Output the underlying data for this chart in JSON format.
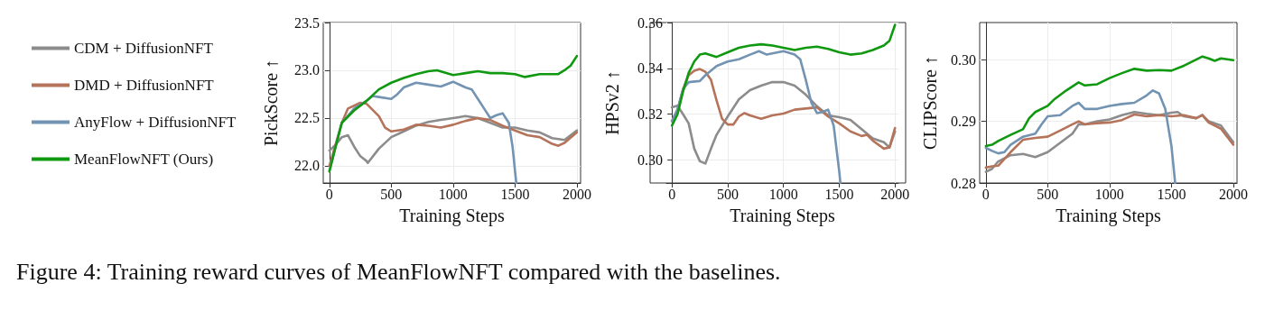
{
  "chart_data": [
    {
      "type": "line",
      "xlabel": "Training Steps",
      "ylabel": "PickScore ↑",
      "xlim": [
        -50,
        2030
      ],
      "xticks": [
        0,
        500,
        1000,
        1500,
        2000
      ],
      "ylim": [
        21.82,
        23.5
      ],
      "yticks": [
        {
          "value": 22,
          "label": "22.0"
        },
        22.5,
        {
          "value": 23,
          "label": "23.0"
        },
        23.5
      ],
      "grid": true,
      "legend": "left",
      "annotations": [
        "Figure 4: Training reward curves of MeanFlowNFT compared with the baselines."
      ],
      "series": [
        {
          "name": "CDM + DiffusionNFT",
          "color": "#8c8c8c",
          "x": [
            0,
            50,
            100,
            150,
            200,
            250,
            300,
            310,
            400,
            500,
            600,
            700,
            800,
            900,
            1000,
            1100,
            1200,
            1300,
            1400,
            1500,
            1600,
            1700,
            1800,
            1900,
            2000
          ],
          "values": [
            22.16,
            22.22,
            22.3,
            22.32,
            22.2,
            22.1,
            22.05,
            22.03,
            22.18,
            22.3,
            22.36,
            22.42,
            22.46,
            22.48,
            22.5,
            22.52,
            22.5,
            22.45,
            22.4,
            22.4,
            22.37,
            22.35,
            22.29,
            22.27,
            22.37
          ]
        },
        {
          "name": "DMD + DiffusionNFT",
          "color": "#b5735a",
          "x": [
            0,
            100,
            150,
            250,
            300,
            400,
            450,
            500,
            600,
            700,
            800,
            900,
            1000,
            1100,
            1200,
            1300,
            1400,
            1500,
            1600,
            1700,
            1800,
            1850,
            1900,
            2000
          ],
          "values": [
            22.0,
            22.45,
            22.6,
            22.66,
            22.65,
            22.52,
            22.4,
            22.36,
            22.38,
            22.43,
            22.42,
            22.4,
            22.43,
            22.47,
            22.5,
            22.48,
            22.42,
            22.37,
            22.32,
            22.3,
            22.23,
            22.21,
            22.24,
            22.35
          ]
        },
        {
          "name": "AnyFlow + DiffusionNFT",
          "color": "#7393b3",
          "x": [
            0,
            50,
            100,
            200,
            300,
            350,
            400,
            500,
            550,
            600,
            700,
            800,
            900,
            1000,
            1100,
            1150,
            1200,
            1250,
            1300,
            1350,
            1400,
            1450,
            1480,
            1510
          ],
          "values": [
            21.95,
            22.2,
            22.45,
            22.6,
            22.68,
            22.73,
            22.72,
            22.7,
            22.75,
            22.82,
            22.87,
            22.85,
            22.83,
            22.88,
            22.82,
            22.8,
            22.7,
            22.6,
            22.5,
            22.53,
            22.55,
            22.45,
            22.2,
            21.82
          ]
        },
        {
          "name": "MeanFlowNFT (Ours)",
          "color": "#109910",
          "x": [
            0,
            50,
            100,
            200,
            300,
            400,
            500,
            600,
            700,
            800,
            870,
            1000,
            1100,
            1200,
            1300,
            1400,
            1500,
            1580,
            1700,
            1800,
            1850,
            1900,
            1950,
            2000
          ],
          "values": [
            21.94,
            22.2,
            22.45,
            22.58,
            22.68,
            22.8,
            22.87,
            22.92,
            22.96,
            22.99,
            23.0,
            22.95,
            22.97,
            22.99,
            22.97,
            22.97,
            22.96,
            22.93,
            22.96,
            22.96,
            22.96,
            23.0,
            23.05,
            23.15
          ]
        }
      ]
    },
    {
      "type": "line",
      "xlabel": "Training Steps",
      "ylabel": "HPSv2 ↑",
      "xlim": [
        -50,
        2030
      ],
      "xticks": [
        0,
        500,
        1000,
        1500,
        2000
      ],
      "ylim": [
        0.29,
        0.36
      ],
      "yticks": [
        {
          "value": 0.3,
          "label": "0.30"
        },
        0.32,
        0.34,
        0.36
      ],
      "grid": true,
      "series": [
        {
          "color": "#8c8c8c",
          "x": [
            0,
            50,
            100,
            150,
            200,
            250,
            300,
            350,
            400,
            500,
            600,
            700,
            800,
            900,
            1000,
            1100,
            1200,
            1300,
            1400,
            1500,
            1600,
            1700,
            1800,
            1900,
            1950,
            2000
          ],
          "values": [
            0.323,
            0.3237,
            0.32,
            0.316,
            0.305,
            0.2995,
            0.2985,
            0.305,
            0.311,
            0.319,
            0.3265,
            0.3305,
            0.3325,
            0.334,
            0.334,
            0.3325,
            0.3285,
            0.3235,
            0.3195,
            0.3187,
            0.3175,
            0.3135,
            0.3095,
            0.3078,
            0.3055,
            0.3125
          ]
        },
        {
          "color": "#b5735a",
          "x": [
            0,
            50,
            100,
            150,
            200,
            250,
            300,
            350,
            400,
            450,
            500,
            550,
            600,
            650,
            700,
            800,
            900,
            1000,
            1100,
            1200,
            1300,
            1400,
            1500,
            1600,
            1700,
            1750,
            1800,
            1900,
            1950,
            2000
          ],
          "values": [
            0.317,
            0.322,
            0.331,
            0.337,
            0.339,
            0.3397,
            0.3385,
            0.335,
            0.326,
            0.318,
            0.3155,
            0.3155,
            0.319,
            0.3205,
            0.3195,
            0.318,
            0.3195,
            0.3203,
            0.322,
            0.3225,
            0.323,
            0.319,
            0.316,
            0.3125,
            0.3105,
            0.311,
            0.3085,
            0.305,
            0.3055,
            0.314
          ]
        },
        {
          "color": "#7393b3",
          "x": [
            0,
            50,
            100,
            150,
            250,
            300,
            400,
            500,
            600,
            700,
            780,
            850,
            1000,
            1100,
            1150,
            1200,
            1250,
            1300,
            1350,
            1400,
            1450,
            1500,
            1510
          ],
          "values": [
            0.317,
            0.322,
            0.331,
            0.334,
            0.3345,
            0.337,
            0.341,
            0.343,
            0.344,
            0.346,
            0.3475,
            0.346,
            0.3475,
            0.346,
            0.344,
            0.335,
            0.325,
            0.3205,
            0.321,
            0.322,
            0.315,
            0.295,
            0.29
          ]
        },
        {
          "color": "#109910",
          "x": [
            0,
            50,
            100,
            150,
            200,
            250,
            300,
            400,
            500,
            600,
            700,
            800,
            900,
            1000,
            1100,
            1200,
            1300,
            1400,
            1500,
            1600,
            1700,
            1800,
            1900,
            1950,
            2000
          ],
          "values": [
            0.315,
            0.32,
            0.33,
            0.338,
            0.343,
            0.346,
            0.3465,
            0.345,
            0.347,
            0.349,
            0.35,
            0.3505,
            0.35,
            0.349,
            0.348,
            0.349,
            0.3495,
            0.3485,
            0.347,
            0.346,
            0.3465,
            0.348,
            0.35,
            0.352,
            0.359
          ]
        }
      ]
    },
    {
      "type": "line",
      "xlabel": "Training Steps",
      "ylabel": "CLIPScore ↑",
      "xlim": [
        -50,
        2030
      ],
      "xticks": [
        0,
        500,
        1000,
        1500,
        2000
      ],
      "ylim": [
        0.28,
        0.306
      ],
      "yticks": [
        0.28,
        0.29,
        {
          "value": 0.3,
          "label": "0.30"
        }
      ],
      "grid": true,
      "series": [
        {
          "color": "#8c8c8c",
          "x": [
            0,
            50,
            100,
            200,
            300,
            400,
            450,
            500,
            600,
            700,
            750,
            800,
            900,
            1000,
            1100,
            1200,
            1300,
            1400,
            1500,
            1550,
            1600,
            1700,
            1750,
            1800,
            1900,
            2000
          ],
          "values": [
            0.2818,
            0.2823,
            0.2835,
            0.2845,
            0.2847,
            0.2842,
            0.2846,
            0.285,
            0.2865,
            0.288,
            0.2895,
            0.2895,
            0.29,
            0.2903,
            0.291,
            0.2915,
            0.2912,
            0.291,
            0.2914,
            0.2915,
            0.2908,
            0.2905,
            0.291,
            0.29,
            0.2893,
            0.2866
          ]
        },
        {
          "color": "#b5735a",
          "x": [
            0,
            50,
            100,
            200,
            300,
            400,
            500,
            600,
            700,
            750,
            800,
            900,
            1000,
            1100,
            1200,
            1300,
            1400,
            1500,
            1600,
            1700,
            1750,
            1800,
            1900,
            2000
          ],
          "values": [
            0.2825,
            0.2827,
            0.2828,
            0.285,
            0.287,
            0.2873,
            0.2875,
            0.2885,
            0.2895,
            0.29,
            0.2895,
            0.2897,
            0.2898,
            0.2902,
            0.2911,
            0.2908,
            0.291,
            0.2908,
            0.291,
            0.2905,
            0.291,
            0.2898,
            0.2888,
            0.2862
          ]
        },
        {
          "color": "#7393b3",
          "x": [
            0,
            50,
            100,
            150,
            200,
            300,
            400,
            450,
            500,
            600,
            700,
            750,
            800,
            900,
            1000,
            1100,
            1200,
            1300,
            1350,
            1400,
            1450,
            1500,
            1530
          ],
          "values": [
            0.2857,
            0.2852,
            0.2848,
            0.285,
            0.2862,
            0.2875,
            0.288,
            0.2895,
            0.2908,
            0.291,
            0.2925,
            0.293,
            0.292,
            0.292,
            0.2925,
            0.2928,
            0.293,
            0.2942,
            0.295,
            0.2945,
            0.292,
            0.286,
            0.28
          ]
        },
        {
          "color": "#109910",
          "x": [
            0,
            50,
            100,
            200,
            300,
            350,
            400,
            500,
            550,
            650,
            750,
            800,
            900,
            1000,
            1100,
            1200,
            1300,
            1400,
            1500,
            1600,
            1700,
            1750,
            1800,
            1850,
            1900,
            2000
          ],
          "values": [
            0.286,
            0.2862,
            0.2868,
            0.2878,
            0.2887,
            0.2905,
            0.2915,
            0.2925,
            0.2935,
            0.295,
            0.2963,
            0.2958,
            0.296,
            0.297,
            0.2978,
            0.2985,
            0.2982,
            0.2983,
            0.2982,
            0.299,
            0.3,
            0.3005,
            0.3002,
            0.2998,
            0.3002,
            0.2999
          ]
        }
      ]
    }
  ]
}
